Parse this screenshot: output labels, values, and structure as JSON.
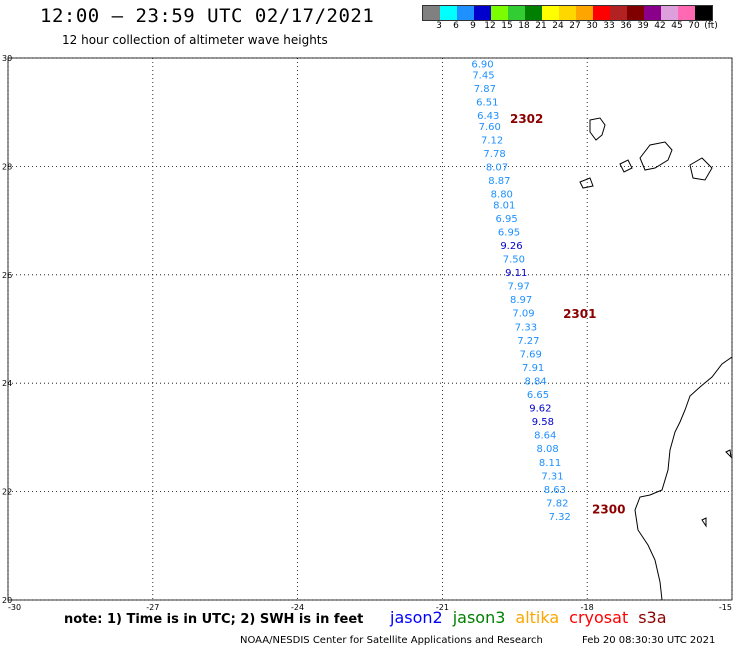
{
  "header": {
    "title": "12:00 – 23:59 UTC 02/17/2021",
    "subtitle": "12 hour collection of altimeter wave heights"
  },
  "legend": {
    "colors": [
      "#808080",
      "#00ffff",
      "#1e90ff",
      "#0000cd",
      "#7cfc00",
      "#32cd32",
      "#008000",
      "#ffff00",
      "#ffd700",
      "#ffa500",
      "#ff0000",
      "#b22222",
      "#800000",
      "#8b008b",
      "#dda0dd",
      "#ff69b4",
      "#000000"
    ],
    "ticks": [
      "3",
      "6",
      "9",
      "12",
      "15",
      "18",
      "21",
      "24",
      "27",
      "30",
      "33",
      "36",
      "39",
      "42",
      "45",
      "70",
      "(ft)"
    ]
  },
  "axes": {
    "lat_labels": [
      "30",
      "28",
      "26",
      "24",
      "22",
      "20"
    ],
    "lon_labels": [
      "-30",
      "-27",
      "-24",
      "-21",
      "-18",
      "-15"
    ]
  },
  "chart_data": {
    "type": "scatter",
    "xlim": [
      -30,
      -15
    ],
    "ylim": [
      20,
      30
    ],
    "grid": true,
    "track_points": [
      {
        "lon": -20.4,
        "lat": 29.9,
        "v": "6.90",
        "c": "#1e90ff"
      },
      {
        "lon": -20.38,
        "lat": 29.7,
        "v": "7.45",
        "c": "#1e90ff"
      },
      {
        "lon": -20.35,
        "lat": 29.45,
        "v": "7.87",
        "c": "#1e90ff"
      },
      {
        "lon": -20.3,
        "lat": 29.2,
        "v": "6.51",
        "c": "#1e90ff"
      },
      {
        "lon": -20.28,
        "lat": 28.95,
        "v": "6.43",
        "c": "#1e90ff"
      },
      {
        "lon": -20.25,
        "lat": 28.75,
        "v": "7.60",
        "c": "#1e90ff"
      },
      {
        "lon": -20.2,
        "lat": 28.5,
        "v": "7.12",
        "c": "#1e90ff"
      },
      {
        "lon": -20.15,
        "lat": 28.25,
        "v": "7.78",
        "c": "#1e90ff"
      },
      {
        "lon": -20.1,
        "lat": 28.0,
        "v": "8.07",
        "c": "#1e90ff"
      },
      {
        "lon": -20.05,
        "lat": 27.75,
        "v": "8.87",
        "c": "#1e90ff"
      },
      {
        "lon": -20.0,
        "lat": 27.5,
        "v": "8.80",
        "c": "#1e90ff"
      },
      {
        "lon": -19.95,
        "lat": 27.3,
        "v": "8.01",
        "c": "#1e90ff"
      },
      {
        "lon": -19.9,
        "lat": 27.05,
        "v": "6.95",
        "c": "#1e90ff"
      },
      {
        "lon": -19.85,
        "lat": 26.8,
        "v": "6.95",
        "c": "#1e90ff"
      },
      {
        "lon": -19.8,
        "lat": 26.55,
        "v": "9.26",
        "c": "#0000cd"
      },
      {
        "lon": -19.75,
        "lat": 26.3,
        "v": "7.50",
        "c": "#1e90ff"
      },
      {
        "lon": -19.7,
        "lat": 26.05,
        "v": "9.11",
        "c": "#0000cd"
      },
      {
        "lon": -19.65,
        "lat": 25.8,
        "v": "7.97",
        "c": "#1e90ff"
      },
      {
        "lon": -19.6,
        "lat": 25.55,
        "v": "8.97",
        "c": "#1e90ff"
      },
      {
        "lon": -19.55,
        "lat": 25.3,
        "v": "7.09",
        "c": "#1e90ff"
      },
      {
        "lon": -19.5,
        "lat": 25.05,
        "v": "7.33",
        "c": "#1e90ff"
      },
      {
        "lon": -19.45,
        "lat": 24.8,
        "v": "7.27",
        "c": "#1e90ff"
      },
      {
        "lon": -19.4,
        "lat": 24.55,
        "v": "7.69",
        "c": "#1e90ff"
      },
      {
        "lon": -19.35,
        "lat": 24.3,
        "v": "7.91",
        "c": "#1e90ff"
      },
      {
        "lon": -19.3,
        "lat": 24.05,
        "v": "8.84",
        "c": "#1e90ff"
      },
      {
        "lon": -19.25,
        "lat": 23.8,
        "v": "6.65",
        "c": "#1e90ff"
      },
      {
        "lon": -19.2,
        "lat": 23.55,
        "v": "9.62",
        "c": "#0000cd"
      },
      {
        "lon": -19.15,
        "lat": 23.3,
        "v": "9.58",
        "c": "#0000cd"
      },
      {
        "lon": -19.1,
        "lat": 23.05,
        "v": "8.64",
        "c": "#1e90ff"
      },
      {
        "lon": -19.05,
        "lat": 22.8,
        "v": "8.08",
        "c": "#1e90ff"
      },
      {
        "lon": -19.0,
        "lat": 22.55,
        "v": "8.11",
        "c": "#1e90ff"
      },
      {
        "lon": -18.95,
        "lat": 22.3,
        "v": "7.31",
        "c": "#1e90ff"
      },
      {
        "lon": -18.9,
        "lat": 22.05,
        "v": "8.63",
        "c": "#1e90ff"
      },
      {
        "lon": -18.85,
        "lat": 21.8,
        "v": "7.82",
        "c": "#1e90ff"
      },
      {
        "lon": -18.8,
        "lat": 21.55,
        "v": "7.32",
        "c": "#1e90ff"
      }
    ],
    "pass_labels": [
      {
        "lon": -19.6,
        "lat": 28.8,
        "label": "2302"
      },
      {
        "lon": -18.5,
        "lat": 25.2,
        "label": "2301"
      },
      {
        "lon": -17.9,
        "lat": 21.6,
        "label": "2300"
      }
    ]
  },
  "footer": {
    "note": "note: 1) Time is in UTC; 2) SWH is in feet",
    "satellites": [
      {
        "name": "jason2",
        "color": "#0000ff"
      },
      {
        "name": "jason3",
        "color": "#008000"
      },
      {
        "name": "altika",
        "color": "#ffa500"
      },
      {
        "name": "cryosat",
        "color": "#ff0000"
      },
      {
        "name": "s3a",
        "color": "#8b0000"
      }
    ],
    "credit": "NOAA/NESDIS Center for Satellite Applications and Research",
    "timestamp": "Feb 20 08:30:30 UTC 2021"
  }
}
